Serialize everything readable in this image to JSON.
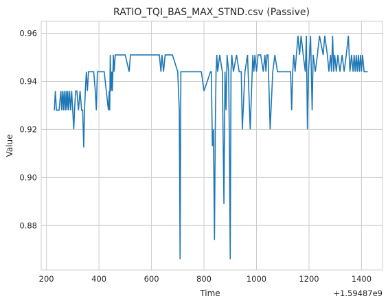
{
  "chart_data": {
    "type": "line",
    "title": "RATIO_TQI_BAS_MAX_STND.csv (Passive)",
    "xlabel": "Time",
    "ylabel": "Value",
    "x_offset_label": "+1.59487e9",
    "xlim": [
      180,
      1480
    ],
    "ylim": [
      0.8615,
      0.965
    ],
    "x_ticks": [
      200,
      400,
      600,
      800,
      1000,
      1200,
      1400
    ],
    "y_ticks": [
      0.88,
      0.9,
      0.92,
      0.94,
      0.96
    ],
    "y_tick_labels": [
      "0.88",
      "0.90",
      "0.92",
      "0.94",
      "0.96"
    ],
    "grid": true,
    "series": [
      {
        "name": "value",
        "color": "#1f77b4",
        "x": [
          230,
          234,
          238,
          248,
          255,
          258,
          262,
          265,
          268,
          272,
          275,
          278,
          281,
          284,
          288,
          292,
          296,
          300,
          304,
          307,
          311,
          316,
          322,
          328,
          334,
          338,
          342,
          345,
          348,
          352,
          356,
          360,
          366,
          380,
          386,
          390,
          394,
          400,
          420,
          436,
          439,
          441,
          443,
          446,
          449,
          451,
          455,
          458,
          462,
          470,
          480,
          500,
          515,
          520,
          560,
          600,
          630,
          636,
          640,
          646,
          652,
          680,
          700,
          703,
          706,
          709,
          712,
          716,
          730,
          760,
          790,
          800,
          825,
          828,
          832,
          836,
          840,
          843,
          846,
          849,
          852,
          860,
          870,
          876,
          880,
          884,
          888,
          894,
          897,
          900,
          903,
          906,
          912,
          924,
          934,
          942,
          946,
          956,
          966,
          976,
          986,
          990,
          994,
          1000,
          1006,
          1016,
          1026,
          1032,
          1036,
          1040,
          1044,
          1052,
          1062,
          1070,
          1080,
          1100,
          1120,
          1130,
          1134,
          1138,
          1142,
          1147,
          1152,
          1158,
          1164,
          1170,
          1178,
          1186,
          1190,
          1194,
          1198,
          1202,
          1206,
          1212,
          1216,
          1224,
          1232,
          1240,
          1254,
          1260,
          1270,
          1276,
          1282,
          1286,
          1290,
          1294,
          1298,
          1304,
          1310,
          1318,
          1326,
          1334,
          1342,
          1350,
          1356,
          1362,
          1368,
          1372,
          1376,
          1380,
          1384,
          1388,
          1392,
          1396,
          1400,
          1404,
          1410,
          1424
        ],
        "y": [
          0.928,
          0.936,
          0.928,
          0.928,
          0.936,
          0.928,
          0.936,
          0.928,
          0.936,
          0.928,
          0.936,
          0.928,
          0.936,
          0.928,
          0.936,
          0.928,
          0.936,
          0.928,
          0.92,
          0.928,
          0.936,
          0.936,
          0.928,
          0.936,
          0.928,
          0.928,
          0.9125,
          0.928,
          0.936,
          0.944,
          0.936,
          0.944,
          0.944,
          0.944,
          0.936,
          0.928,
          0.944,
          0.944,
          0.944,
          0.928,
          0.936,
          0.928,
          0.951,
          0.936,
          0.944,
          0.936,
          0.951,
          0.944,
          0.951,
          0.951,
          0.951,
          0.951,
          0.944,
          0.951,
          0.951,
          0.951,
          0.951,
          0.944,
          0.951,
          0.944,
          0.951,
          0.951,
          0.944,
          0.936,
          0.928,
          0.866,
          0.944,
          0.944,
          0.944,
          0.944,
          0.944,
          0.936,
          0.944,
          0.944,
          0.913,
          0.92,
          0.874,
          0.92,
          0.944,
          0.951,
          0.944,
          0.951,
          0.944,
          0.889,
          0.944,
          0.928,
          0.951,
          0.944,
          0.913,
          0.866,
          0.944,
          0.951,
          0.944,
          0.951,
          0.944,
          0.944,
          0.92,
          0.944,
          0.951,
          0.92,
          0.951,
          0.944,
          0.951,
          0.944,
          0.951,
          0.951,
          0.944,
          0.951,
          0.944,
          0.951,
          0.951,
          0.92,
          0.944,
          0.951,
          0.944,
          0.944,
          0.944,
          0.944,
          0.928,
          0.944,
          0.951,
          0.944,
          0.951,
          0.959,
          0.951,
          0.959,
          0.951,
          0.944,
          0.959,
          0.92,
          0.944,
          0.951,
          0.959,
          0.928,
          0.951,
          0.944,
          0.951,
          0.959,
          0.951,
          0.959,
          0.951,
          0.944,
          0.951,
          0.944,
          0.959,
          0.944,
          0.951,
          0.944,
          0.951,
          0.944,
          0.951,
          0.944,
          0.951,
          0.959,
          0.944,
          0.951,
          0.944,
          0.951,
          0.944,
          0.951,
          0.944,
          0.951,
          0.944,
          0.951,
          0.944,
          0.951,
          0.944,
          0.944
        ]
      }
    ]
  }
}
